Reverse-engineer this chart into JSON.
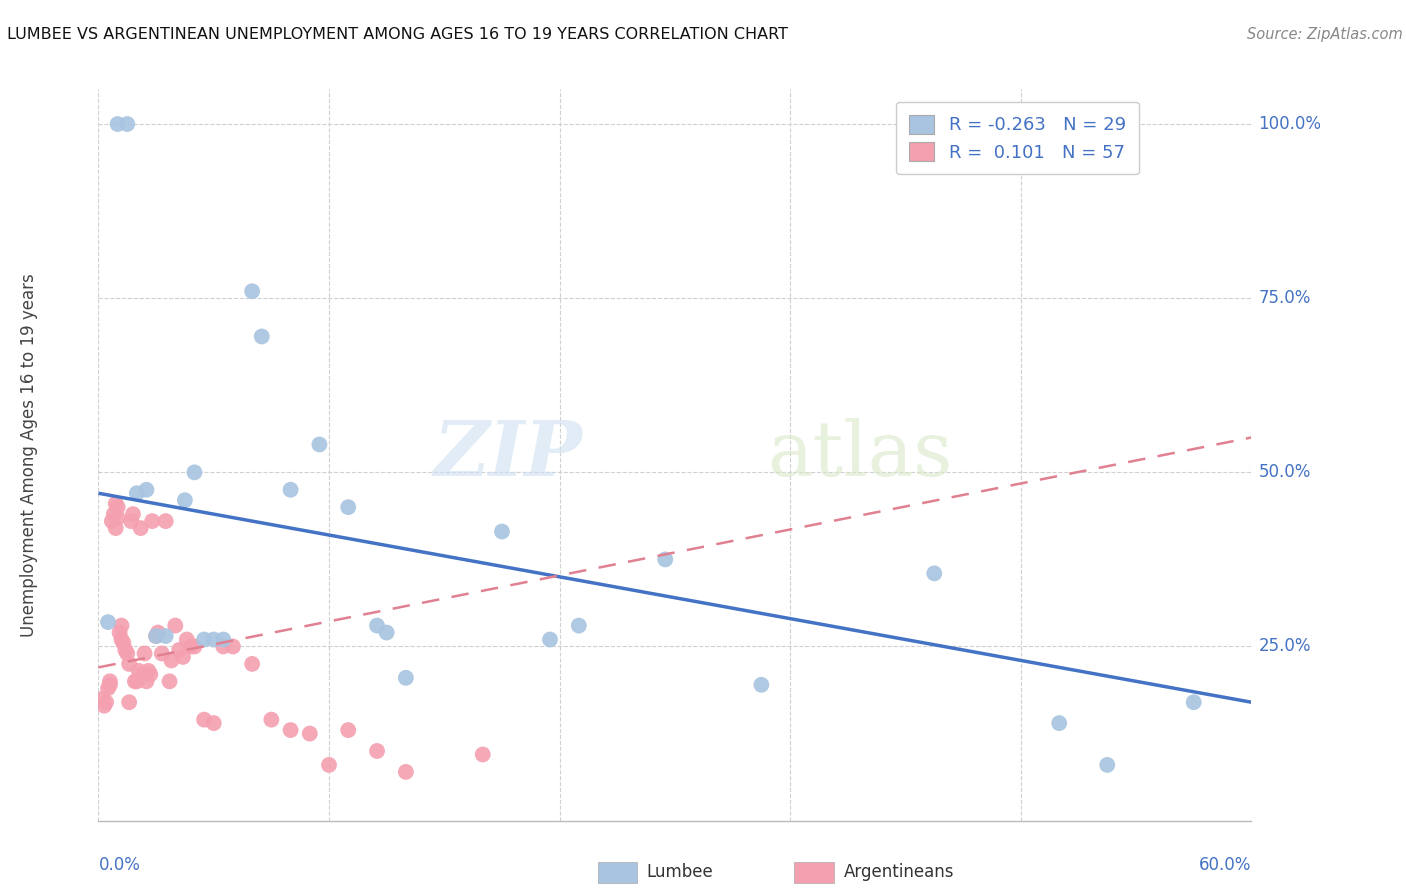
{
  "title": "LUMBEE VS ARGENTINEAN UNEMPLOYMENT AMONG AGES 16 TO 19 YEARS CORRELATION CHART",
  "source": "Source: ZipAtlas.com",
  "ylabel": "Unemployment Among Ages 16 to 19 years",
  "legend_lumbee": "Lumbee",
  "legend_arg": "Argentineans",
  "R_lumbee": -0.263,
  "N_lumbee": 29,
  "R_arg": 0.101,
  "N_arg": 57,
  "lumbee_color": "#a8c4e0",
  "arg_color": "#f4a0b0",
  "lumbee_line_color": "#4472c4",
  "arg_line_color": "#e08090",
  "watermark_zip": "ZIP",
  "watermark_atlas": "atlas",
  "xlim": [
    0.0,
    0.6
  ],
  "ylim": [
    0.0,
    1.05
  ],
  "lumbee_x": [
    0.005,
    0.01,
    0.015,
    0.02,
    0.025,
    0.03,
    0.035,
    0.045,
    0.05,
    0.055,
    0.06,
    0.065,
    0.08,
    0.085,
    0.1,
    0.115,
    0.13,
    0.145,
    0.15,
    0.16,
    0.21,
    0.235,
    0.25,
    0.295,
    0.345,
    0.435,
    0.5,
    0.525,
    0.57
  ],
  "lumbee_y": [
    0.285,
    1.0,
    1.0,
    0.47,
    0.475,
    0.265,
    0.265,
    0.46,
    0.5,
    0.26,
    0.26,
    0.26,
    0.76,
    0.695,
    0.475,
    0.54,
    0.45,
    0.28,
    0.27,
    0.205,
    0.415,
    0.26,
    0.28,
    0.375,
    0.195,
    0.355,
    0.14,
    0.08,
    0.17
  ],
  "arg_x": [
    0.002,
    0.003,
    0.004,
    0.005,
    0.006,
    0.006,
    0.007,
    0.008,
    0.009,
    0.009,
    0.01,
    0.01,
    0.011,
    0.012,
    0.012,
    0.013,
    0.014,
    0.015,
    0.016,
    0.016,
    0.017,
    0.018,
    0.019,
    0.02,
    0.021,
    0.022,
    0.023,
    0.024,
    0.025,
    0.026,
    0.027,
    0.028,
    0.03,
    0.031,
    0.033,
    0.035,
    0.037,
    0.038,
    0.04,
    0.042,
    0.044,
    0.046,
    0.048,
    0.05,
    0.055,
    0.06,
    0.065,
    0.07,
    0.08,
    0.09,
    0.1,
    0.11,
    0.12,
    0.13,
    0.145,
    0.16,
    0.2
  ],
  "arg_y": [
    0.175,
    0.165,
    0.17,
    0.19,
    0.195,
    0.2,
    0.43,
    0.44,
    0.455,
    0.42,
    0.45,
    0.435,
    0.27,
    0.28,
    0.26,
    0.255,
    0.245,
    0.24,
    0.225,
    0.17,
    0.43,
    0.44,
    0.2,
    0.2,
    0.215,
    0.42,
    0.21,
    0.24,
    0.2,
    0.215,
    0.21,
    0.43,
    0.265,
    0.27,
    0.24,
    0.43,
    0.2,
    0.23,
    0.28,
    0.245,
    0.235,
    0.26,
    0.25,
    0.25,
    0.145,
    0.14,
    0.25,
    0.25,
    0.225,
    0.145,
    0.13,
    0.125,
    0.08,
    0.13,
    0.1,
    0.07,
    0.095
  ],
  "lumbee_line_x": [
    0.0,
    0.6
  ],
  "lumbee_line_y": [
    0.47,
    0.17
  ],
  "arg_line_x": [
    0.0,
    0.6
  ],
  "arg_line_y": [
    0.22,
    0.55
  ]
}
